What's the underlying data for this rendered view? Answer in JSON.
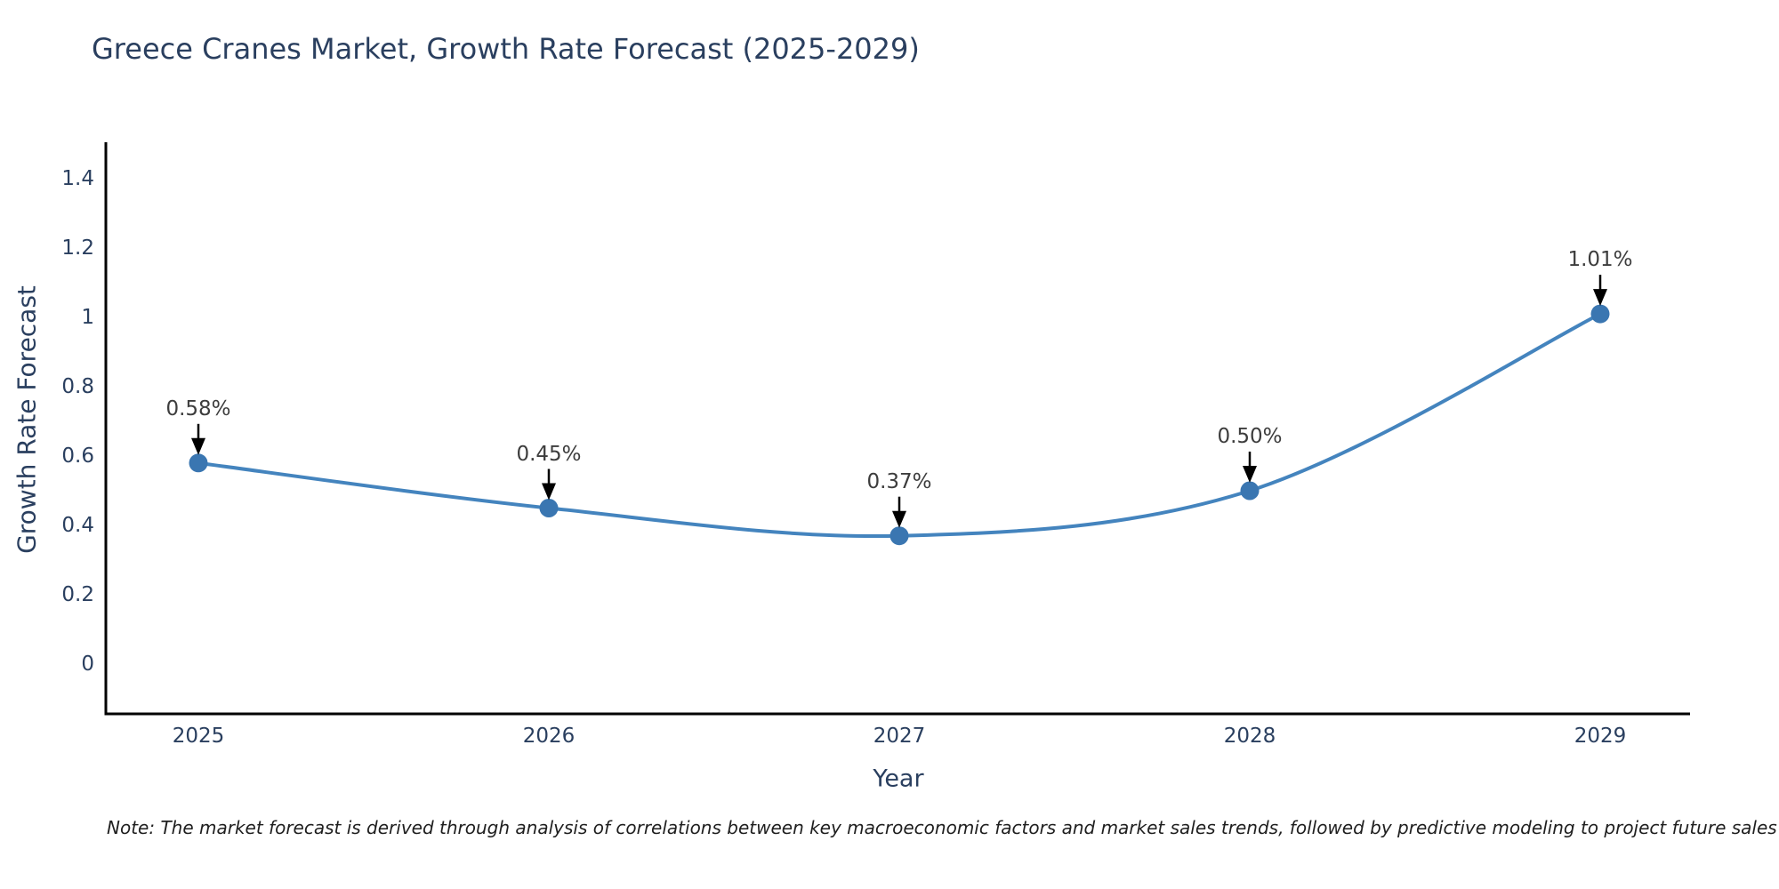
{
  "footnote": {
    "text": "Note: The market forecast is derived through analysis of correlations between key macroeconomic factors and market sales trends, followed by predictive modeling to project future sales"
  },
  "chart_data": {
    "type": "line",
    "title": "Greece Cranes Market, Growth Rate Forecast (2025-2029)",
    "xlabel": "Year",
    "ylabel": "Growth Rate Forecast",
    "categories": [
      "2025",
      "2026",
      "2027",
      "2028",
      "2029"
    ],
    "values": [
      0.58,
      0.45,
      0.37,
      0.5,
      1.01
    ],
    "point_labels": [
      "0.58%",
      "0.45%",
      "0.37%",
      "0.50%",
      "1.01%"
    ],
    "ytick_labels": [
      "0",
      "0.2",
      "0.4",
      "0.6",
      "0.8",
      "1",
      "1.2",
      "1.4"
    ],
    "ytick_values": [
      0,
      0.2,
      0.4,
      0.6,
      0.8,
      1.0,
      1.2,
      1.4
    ],
    "ylim": [
      -0.144,
      1.505
    ],
    "line_shape": "spline",
    "grid": false,
    "legend_position": "none",
    "colors": {
      "line": "#4484be",
      "marker": "#3a76b1",
      "axis": "#000000",
      "axis_text": "#2a3f5f",
      "annotation_text": "#3d3d3d",
      "arrow": "#000000",
      "background": "#ffffff"
    }
  }
}
